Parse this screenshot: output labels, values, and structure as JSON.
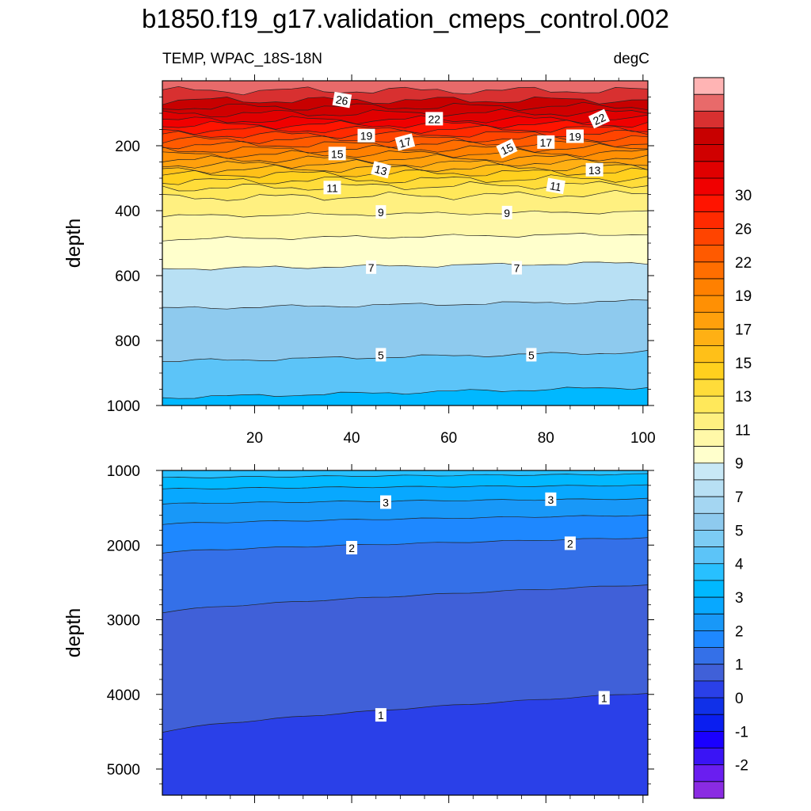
{
  "chart_data": {
    "type": "heatmap",
    "title": "b1850.f19_g17.validation_cmeps_control.002",
    "subtitle_left": "TEMP, WPAC_18S-18N",
    "subtitle_right": "degC",
    "colorbar": {
      "levels": [
        -2.5,
        -2,
        -1.5,
        -1,
        -0.5,
        0,
        0.5,
        1,
        1.5,
        2,
        2.5,
        3,
        3.5,
        4,
        4.5,
        5,
        5.5,
        6,
        6.5,
        7,
        7.5,
        8,
        9,
        10,
        11,
        12,
        13,
        14,
        15,
        16,
        17,
        18,
        19,
        20,
        21,
        22,
        23,
        24,
        25,
        26,
        27,
        28,
        30,
        32,
        34
      ],
      "colors": [
        "#8a2be2",
        "#6a1ef0",
        "#3a14f5",
        "#1a00ff",
        "#0a1ef0",
        "#1030e8",
        "#2a40e8",
        "#4060d8",
        "#3470e8",
        "#1e88ff",
        "#1898f8",
        "#08a8ff",
        "#00b8ff",
        "#28c0ff",
        "#5cc4f8",
        "#7cccf4",
        "#8ecaee",
        "#a4d6f2",
        "#b8e0f4",
        "#c8e8f6",
        "#ffffcc",
        "#fff8a8",
        "#fff080",
        "#ffe85a",
        "#ffdc3a",
        "#ffd01e",
        "#ffc018",
        "#ffb014",
        "#ffa00c",
        "#ff9004",
        "#ff8000",
        "#ff6e00",
        "#ff5a00",
        "#ff4400",
        "#ff2a00",
        "#ff1400",
        "#f00000",
        "#e00000",
        "#d00000",
        "#c80000",
        "#d83030",
        "#e86a6a",
        "#ffb4b4"
      ],
      "tick_labels": [
        "-2",
        "-1",
        "0",
        "1",
        "2",
        "3",
        "4",
        "5",
        "7",
        "9",
        "11",
        "13",
        "15",
        "17",
        "19",
        "22",
        "26",
        "30"
      ]
    },
    "panels": [
      {
        "name": "upper",
        "x_range": [
          1,
          101
        ],
        "y_range": [
          0,
          1000
        ],
        "y_reversed": true,
        "ylabel": "depth",
        "x_ticks": [
          20,
          40,
          60,
          80,
          100
        ],
        "y_ticks": [
          200,
          400,
          600,
          800,
          1000
        ],
        "contour_depths": [
          {
            "level": 28,
            "depth": 30
          },
          {
            "level": 27,
            "depth": 60
          },
          {
            "level": 26,
            "depth": 80
          },
          {
            "level": 25,
            "depth": 100
          },
          {
            "level": 24,
            "depth": 120
          },
          {
            "level": 23,
            "depth": 135
          },
          {
            "level": 22,
            "depth": 150
          },
          {
            "level": 21,
            "depth": 165
          },
          {
            "level": 20,
            "depth": 180
          },
          {
            "level": 19,
            "depth": 195
          },
          {
            "level": 18,
            "depth": 210
          },
          {
            "level": 17,
            "depth": 225
          },
          {
            "level": 16,
            "depth": 240
          },
          {
            "level": 15,
            "depth": 255
          },
          {
            "level": 14,
            "depth": 270
          },
          {
            "level": 13,
            "depth": 285
          },
          {
            "level": 12,
            "depth": 305
          },
          {
            "level": 11,
            "depth": 325
          },
          {
            "level": 10,
            "depth": 355
          },
          {
            "level": 9,
            "depth": 410
          },
          {
            "level": 8,
            "depth": 480
          },
          {
            "level": 7,
            "depth": 570
          },
          {
            "level": 6,
            "depth": 690
          },
          {
            "level": 5,
            "depth": 850
          },
          {
            "level": 4,
            "depth": 960
          }
        ],
        "contour_labels": [
          {
            "text": "26",
            "x": 38,
            "depth": 60,
            "rot": 10
          },
          {
            "text": "22",
            "x": 57,
            "depth": 118,
            "rot": 0
          },
          {
            "text": "22",
            "x": 91,
            "depth": 118,
            "rot": -25
          },
          {
            "text": "19",
            "x": 43,
            "depth": 170,
            "rot": 0
          },
          {
            "text": "19",
            "x": 86,
            "depth": 172,
            "rot": 0
          },
          {
            "text": "17",
            "x": 51,
            "depth": 190,
            "rot": -15
          },
          {
            "text": "17",
            "x": 80,
            "depth": 190,
            "rot": 0
          },
          {
            "text": "15",
            "x": 37,
            "depth": 225,
            "rot": 0
          },
          {
            "text": "15",
            "x": 72,
            "depth": 210,
            "rot": -25
          },
          {
            "text": "13",
            "x": 46,
            "depth": 275,
            "rot": 15
          },
          {
            "text": "13",
            "x": 90,
            "depth": 275,
            "rot": 0
          },
          {
            "text": "11",
            "x": 36,
            "depth": 330,
            "rot": 0
          },
          {
            "text": "11",
            "x": 82,
            "depth": 325,
            "rot": 10
          },
          {
            "text": "9",
            "x": 46,
            "depth": 405,
            "rot": 0
          },
          {
            "text": "9",
            "x": 72,
            "depth": 407,
            "rot": 0
          },
          {
            "text": "7",
            "x": 44,
            "depth": 575,
            "rot": 0
          },
          {
            "text": "7",
            "x": 74,
            "depth": 577,
            "rot": 0
          },
          {
            "text": "5",
            "x": 46,
            "depth": 845,
            "rot": 0
          },
          {
            "text": "5",
            "x": 77,
            "depth": 845,
            "rot": 0
          }
        ]
      },
      {
        "name": "lower",
        "x_range": [
          1,
          101
        ],
        "y_range": [
          1000,
          5350
        ],
        "y_reversed": true,
        "ylabel": "depth",
        "y_ticks": [
          1000,
          2000,
          3000,
          4000,
          5000
        ],
        "contour_depths": [
          {
            "level": 4,
            "depth_left": 1100,
            "depth_right": 1050
          },
          {
            "level": 3.5,
            "depth_left": 1250,
            "depth_right": 1200
          },
          {
            "level": 3,
            "depth_left": 1450,
            "depth_right": 1380
          },
          {
            "level": 2.5,
            "depth_left": 1720,
            "depth_right": 1600
          },
          {
            "level": 2,
            "depth_left": 2100,
            "depth_right": 1900
          },
          {
            "level": 1.5,
            "depth_left": 2900,
            "depth_right": 2530
          },
          {
            "level": 1,
            "depth_left": 4500,
            "depth_right": 3980
          }
        ],
        "contour_labels": [
          {
            "text": "3",
            "x": 47,
            "depth": 1430
          },
          {
            "text": "3",
            "x": 81,
            "depth": 1390
          },
          {
            "text": "2",
            "x": 40,
            "depth": 2040
          },
          {
            "text": "2",
            "x": 85,
            "depth": 1980
          },
          {
            "text": "1",
            "x": 46,
            "depth": 4280
          },
          {
            "text": "1",
            "x": 92,
            "depth": 4050
          }
        ]
      }
    ]
  }
}
